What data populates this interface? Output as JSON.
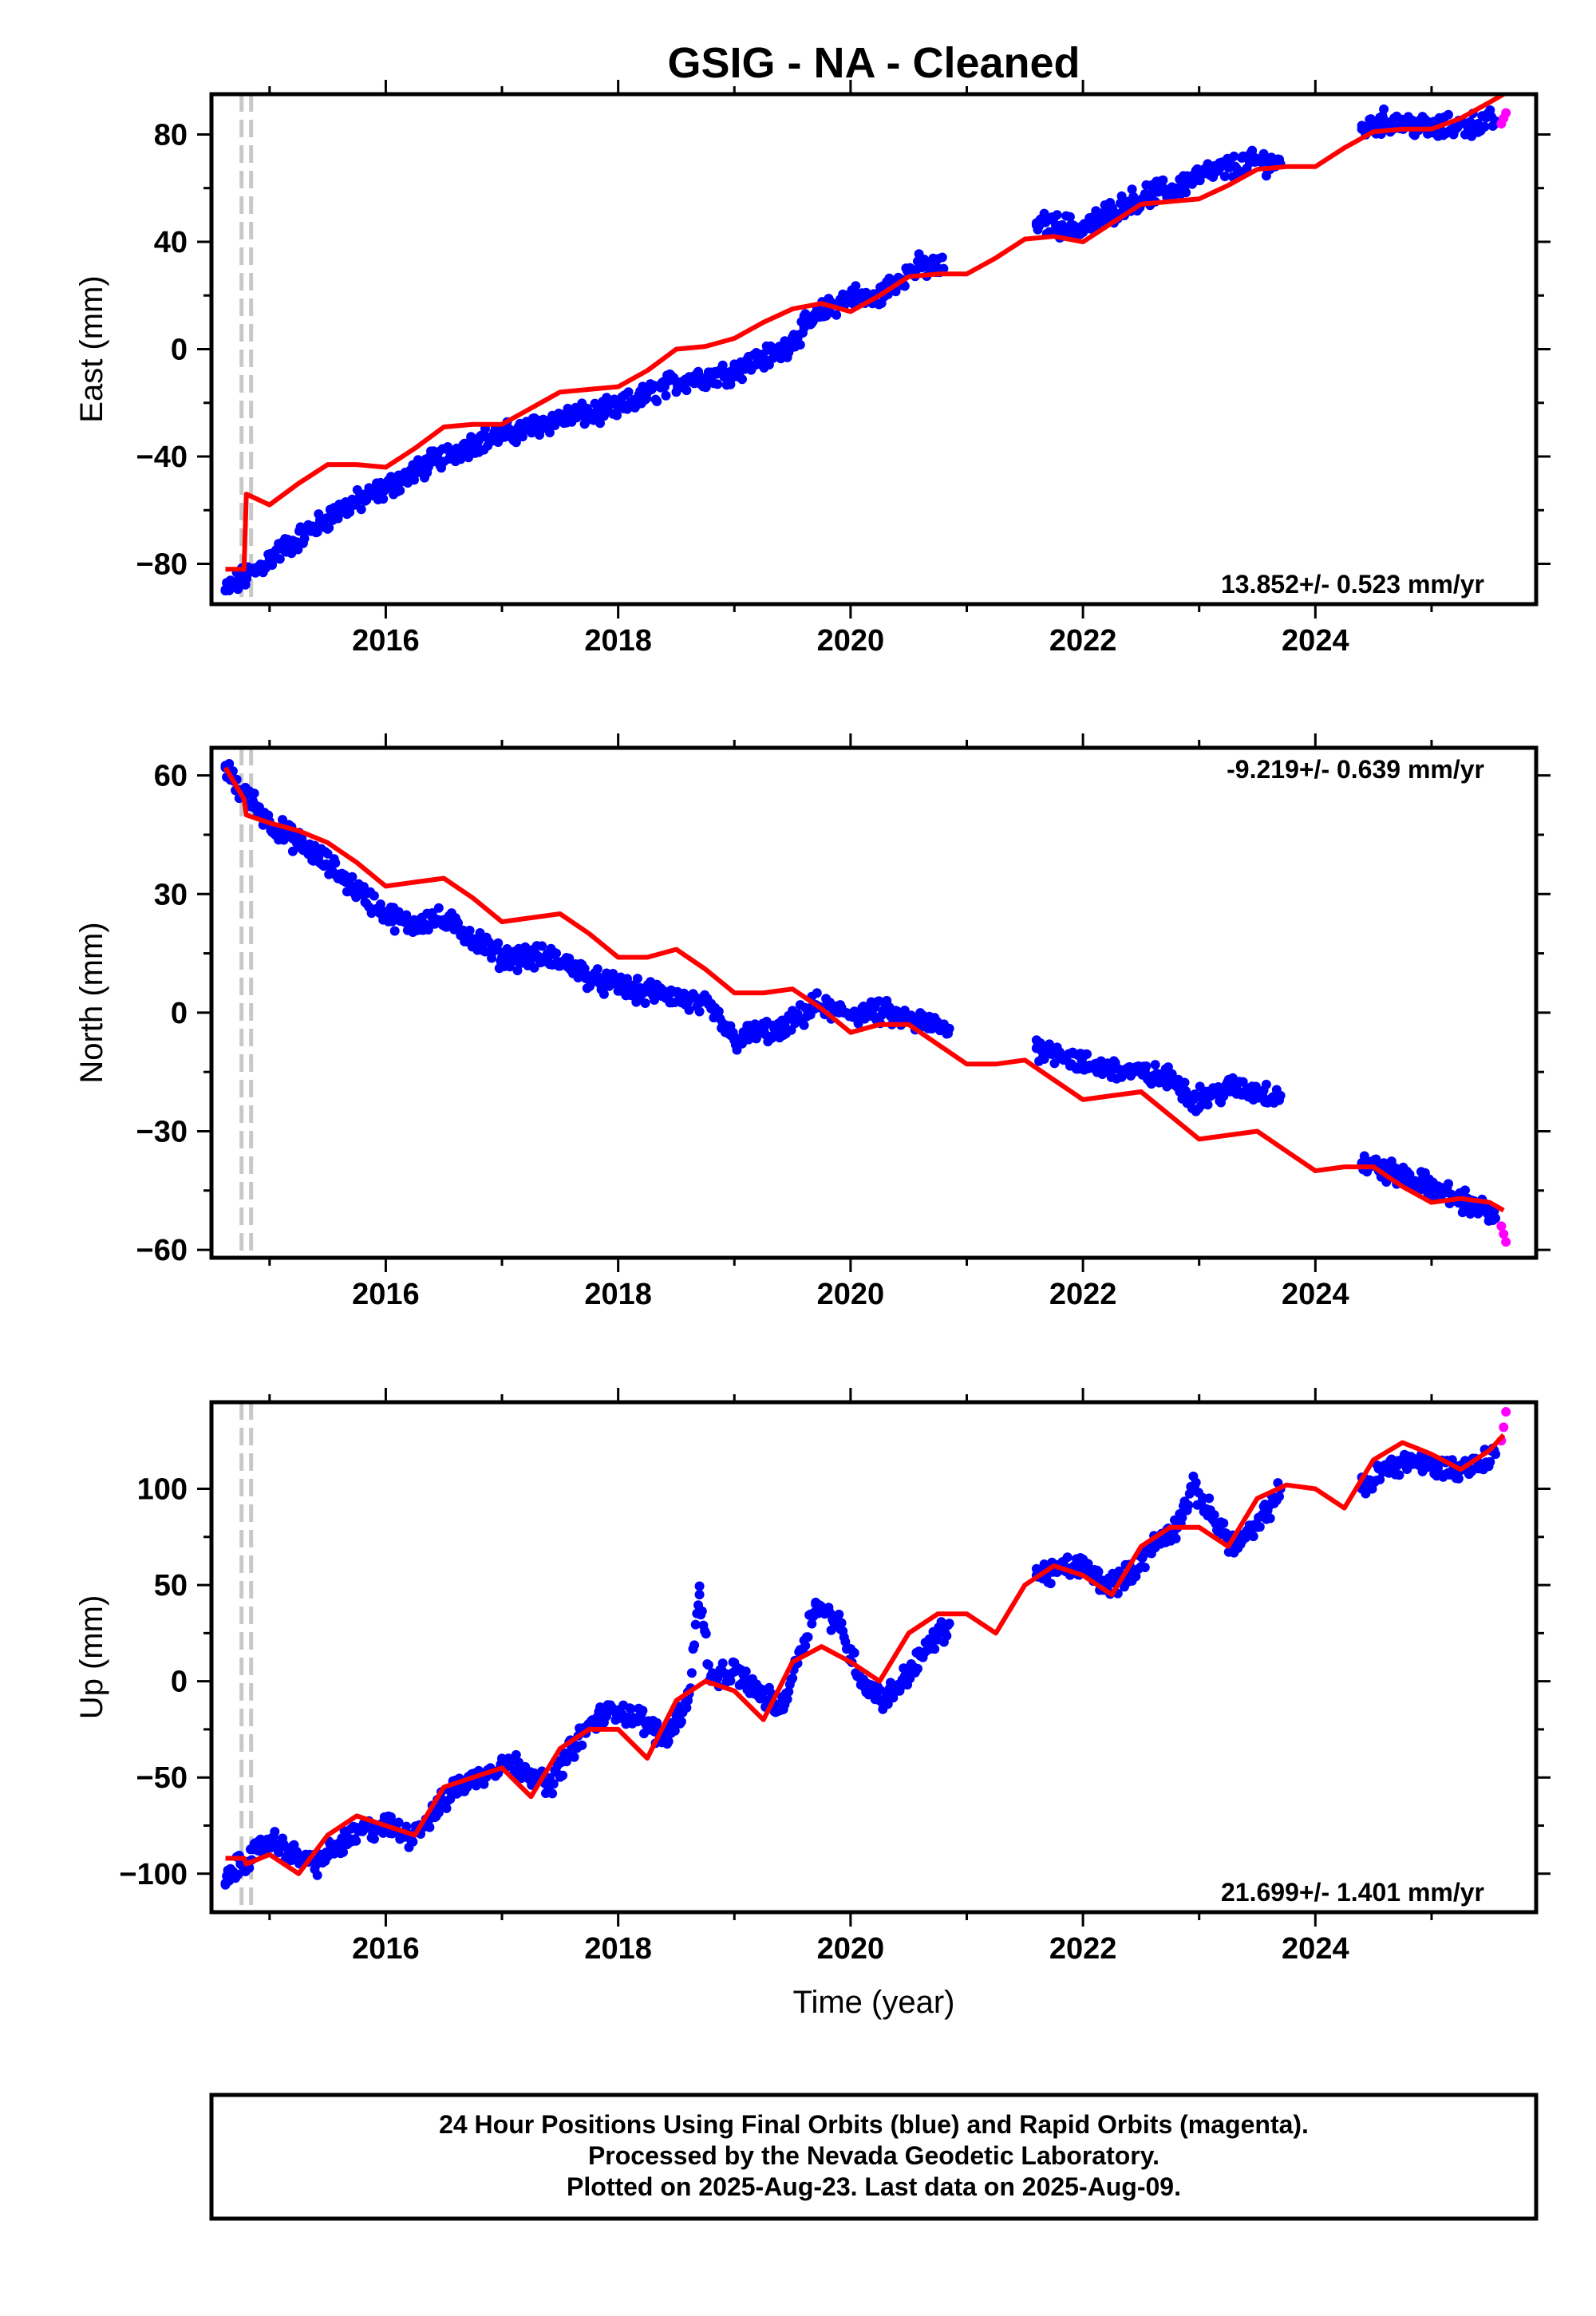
{
  "title": "GSIG  - NA - Cleaned",
  "x_axis_label": "Time (year)",
  "footer": [
    "24 Hour Positions Using Final Orbits (blue) and Rapid Orbits (magenta).",
    "Processed by the Nevada Geodetic Laboratory.",
    "Plotted on 2025-Aug-23. Last data on 2025-Aug-09."
  ],
  "colors": {
    "final": "#0000ff",
    "rapid": "#ff00ff",
    "model": "#ff0000",
    "event_line": "#c8c8c8"
  },
  "chart_data": [
    {
      "type": "scatter",
      "ylabel": "East (mm)",
      "rate_label": "13.852+/- 0.523 mm/yr",
      "xlim": [
        2014.5,
        2025.9
      ],
      "ylim": [
        -95,
        95
      ],
      "xticks": [
        2016,
        2018,
        2020,
        2022,
        2024
      ],
      "yticks": [
        -80,
        -40,
        0,
        40,
        80
      ],
      "grid": false,
      "event_line_x": 2014.8,
      "series": [
        {
          "role": "final",
          "x": [
            2014.62,
            2014.75,
            2014.9,
            2015.0,
            2015.2,
            2015.4,
            2015.6,
            2015.8,
            2016.0,
            2016.2,
            2016.4,
            2016.6,
            2016.8,
            2017.0,
            2017.2,
            2017.4,
            2017.6,
            2017.8,
            2018.0,
            2018.2,
            2018.4,
            2018.6,
            2018.8,
            2019.0,
            2019.2,
            2019.4,
            2019.6,
            2019.8,
            2020.0,
            2020.2,
            2020.4,
            2020.6,
            2020.8,
            2021.6,
            2021.8,
            2022.0,
            2022.2,
            2022.4,
            2022.6,
            2022.8,
            2022.95,
            2023.3,
            2023.5,
            2023.7,
            2024.4,
            2024.6,
            2024.8,
            2025.0,
            2025.2,
            2025.4,
            2025.55
          ],
          "y": [
            -90,
            -86,
            -82,
            -78,
            -72,
            -66,
            -60,
            -56,
            -52,
            -47,
            -42,
            -38,
            -34,
            -32,
            -30,
            -27,
            -25,
            -24,
            -22,
            -18,
            -14,
            -11,
            -10,
            -8,
            -4,
            -1,
            8,
            15,
            20,
            18,
            26,
            31,
            30,
            47,
            46,
            45,
            50,
            55,
            58,
            60,
            64,
            68,
            70,
            69,
            82,
            85,
            84,
            82,
            83,
            84,
            85
          ]
        },
        {
          "role": "rapid",
          "x": [
            2025.6,
            2025.62,
            2025.64
          ],
          "y": [
            84,
            86,
            88
          ]
        },
        {
          "role": "model",
          "x": [
            2014.62,
            2014.78,
            2014.8,
            2015.0,
            2015.25,
            2015.5,
            2015.75,
            2016.0,
            2016.25,
            2016.5,
            2016.75,
            2017.0,
            2017.25,
            2017.5,
            2017.75,
            2018.0,
            2018.25,
            2018.5,
            2018.75,
            2019.0,
            2019.25,
            2019.5,
            2019.75,
            2020.0,
            2020.25,
            2020.5,
            2020.75,
            2021.0,
            2021.25,
            2021.5,
            2021.75,
            2022.0,
            2022.25,
            2022.5,
            2022.75,
            2023.0,
            2023.25,
            2023.5,
            2023.75,
            2024.0,
            2024.25,
            2024.5,
            2024.75,
            2025.0,
            2025.25,
            2025.5,
            2025.62
          ],
          "y": [
            -82,
            -82,
            -54,
            -58,
            -50,
            -43,
            -43,
            -44,
            -37,
            -29,
            -28,
            -28,
            -22,
            -16,
            -15,
            -14,
            -8,
            0,
            1,
            4,
            10,
            15,
            17,
            14,
            20,
            27,
            28,
            28,
            34,
            41,
            42,
            40,
            47,
            54,
            55,
            56,
            61,
            67,
            68,
            68,
            75,
            81,
            82,
            82,
            86,
            92,
            95
          ]
        }
      ]
    },
    {
      "type": "scatter",
      "ylabel": "North (mm)",
      "rate_label": "-9.219+/- 0.639 mm/yr",
      "xlim": [
        2014.5,
        2025.9
      ],
      "ylim": [
        -62,
        67
      ],
      "xticks": [
        2016,
        2018,
        2020,
        2022,
        2024
      ],
      "yticks": [
        -60,
        -30,
        0,
        30,
        60
      ],
      "grid": false,
      "event_line_x": 2014.8,
      "series": [
        {
          "role": "final",
          "x": [
            2014.62,
            2014.75,
            2014.9,
            2015.0,
            2015.2,
            2015.4,
            2015.6,
            2015.8,
            2016.0,
            2016.2,
            2016.4,
            2016.6,
            2016.8,
            2017.0,
            2017.2,
            2017.4,
            2017.6,
            2017.8,
            2018.0,
            2018.2,
            2018.4,
            2018.6,
            2018.8,
            2019.0,
            2019.2,
            2019.4,
            2019.7,
            2019.9,
            2020.1,
            2020.3,
            2020.5,
            2020.7,
            2020.85,
            2021.6,
            2021.8,
            2022.0,
            2022.2,
            2022.4,
            2022.6,
            2022.8,
            2022.95,
            2023.3,
            2023.5,
            2023.7,
            2024.4,
            2024.6,
            2024.8,
            2025.0,
            2025.2,
            2025.4,
            2025.55
          ],
          "y": [
            62,
            56,
            52,
            48,
            44,
            40,
            35,
            30,
            25,
            22,
            24,
            22,
            18,
            14,
            14,
            14,
            12,
            8,
            7,
            5,
            5,
            3,
            1,
            -7,
            -5,
            -5,
            2,
            0,
            0,
            0,
            -2,
            -3,
            -4,
            -9,
            -10,
            -13,
            -14,
            -15,
            -16,
            -17,
            -22,
            -19,
            -20,
            -21,
            -38,
            -40,
            -42,
            -44,
            -47,
            -49,
            -52
          ]
        },
        {
          "role": "rapid",
          "x": [
            2025.6,
            2025.62,
            2025.64
          ],
          "y": [
            -54,
            -56,
            -58
          ]
        },
        {
          "role": "model",
          "x": [
            2014.62,
            2014.78,
            2014.8,
            2015.0,
            2015.25,
            2015.5,
            2015.75,
            2016.0,
            2016.25,
            2016.5,
            2016.75,
            2017.0,
            2017.25,
            2017.5,
            2017.75,
            2018.0,
            2018.25,
            2018.5,
            2018.75,
            2019.0,
            2019.25,
            2019.5,
            2019.75,
            2020.0,
            2020.25,
            2020.5,
            2020.75,
            2021.0,
            2021.25,
            2021.5,
            2021.75,
            2022.0,
            2022.25,
            2022.5,
            2022.75,
            2023.0,
            2023.25,
            2023.5,
            2023.75,
            2024.0,
            2024.25,
            2024.5,
            2024.75,
            2025.0,
            2025.25,
            2025.5,
            2025.62
          ],
          "y": [
            62,
            54,
            50,
            48,
            46,
            43,
            38,
            32,
            33,
            34,
            29,
            23,
            24,
            25,
            20,
            14,
            14,
            16,
            11,
            5,
            5,
            6,
            1,
            -5,
            -3,
            -3,
            -8,
            -13,
            -13,
            -12,
            -17,
            -22,
            -21,
            -20,
            -26,
            -32,
            -31,
            -30,
            -35,
            -40,
            -39,
            -39,
            -44,
            -48,
            -47,
            -48,
            -50
          ]
        }
      ]
    },
    {
      "type": "scatter",
      "ylabel": "Up (mm)",
      "x_axis_label": "Time (year)",
      "rate_label": "21.699+/- 1.401 mm/yr",
      "xlim": [
        2014.5,
        2025.9
      ],
      "ylim": [
        -120,
        145
      ],
      "xticks": [
        2016,
        2018,
        2020,
        2022,
        2024
      ],
      "yticks": [
        -100,
        -50,
        0,
        50,
        100
      ],
      "grid": false,
      "event_line_x": 2014.8,
      "series": [
        {
          "role": "final",
          "x": [
            2014.62,
            2014.75,
            2014.9,
            2015.0,
            2015.2,
            2015.4,
            2015.6,
            2015.8,
            2016.0,
            2016.2,
            2016.4,
            2016.6,
            2016.8,
            2017.0,
            2017.2,
            2017.4,
            2017.6,
            2017.8,
            2018.0,
            2018.2,
            2018.4,
            2018.6,
            2018.7,
            2018.8,
            2019.0,
            2019.2,
            2019.4,
            2019.7,
            2019.9,
            2020.1,
            2020.3,
            2020.5,
            2020.7,
            2020.85,
            2021.6,
            2021.8,
            2022.0,
            2022.2,
            2022.4,
            2022.6,
            2022.8,
            2022.95,
            2023.3,
            2023.5,
            2023.7,
            2024.4,
            2024.6,
            2024.8,
            2025.0,
            2025.2,
            2025.4,
            2025.55
          ],
          "y": [
            -105,
            -95,
            -88,
            -82,
            -90,
            -95,
            -85,
            -78,
            -75,
            -80,
            -70,
            -55,
            -50,
            -42,
            -45,
            -55,
            -35,
            -20,
            -15,
            -20,
            -30,
            -10,
            45,
            0,
            5,
            -5,
            -15,
            40,
            30,
            0,
            -10,
            5,
            20,
            30,
            55,
            58,
            60,
            50,
            55,
            70,
            80,
            100,
            70,
            80,
            100,
            100,
            110,
            115,
            112,
            110,
            113,
            118
          ]
        },
        {
          "role": "rapid",
          "x": [
            2025.6,
            2025.62,
            2025.64
          ],
          "y": [
            125,
            132,
            140
          ]
        },
        {
          "role": "model",
          "x": [
            2014.62,
            2014.78,
            2014.8,
            2015.0,
            2015.25,
            2015.5,
            2015.75,
            2016.0,
            2016.25,
            2016.5,
            2016.75,
            2017.0,
            2017.25,
            2017.5,
            2017.75,
            2018.0,
            2018.25,
            2018.5,
            2018.75,
            2019.0,
            2019.25,
            2019.5,
            2019.75,
            2020.0,
            2020.25,
            2020.5,
            2020.75,
            2021.0,
            2021.25,
            2021.5,
            2021.75,
            2022.0,
            2022.25,
            2022.5,
            2022.75,
            2023.0,
            2023.25,
            2023.5,
            2023.75,
            2024.0,
            2024.25,
            2024.5,
            2024.75,
            2025.0,
            2025.25,
            2025.5,
            2025.62
          ],
          "y": [
            -92,
            -92,
            -95,
            -90,
            -100,
            -80,
            -70,
            -75,
            -80,
            -55,
            -50,
            -45,
            -60,
            -35,
            -25,
            -25,
            -40,
            -10,
            0,
            -5,
            -20,
            10,
            18,
            10,
            0,
            25,
            35,
            35,
            25,
            50,
            60,
            55,
            45,
            70,
            80,
            80,
            70,
            95,
            102,
            100,
            90,
            115,
            124,
            118,
            110,
            120,
            128
          ]
        }
      ]
    }
  ]
}
